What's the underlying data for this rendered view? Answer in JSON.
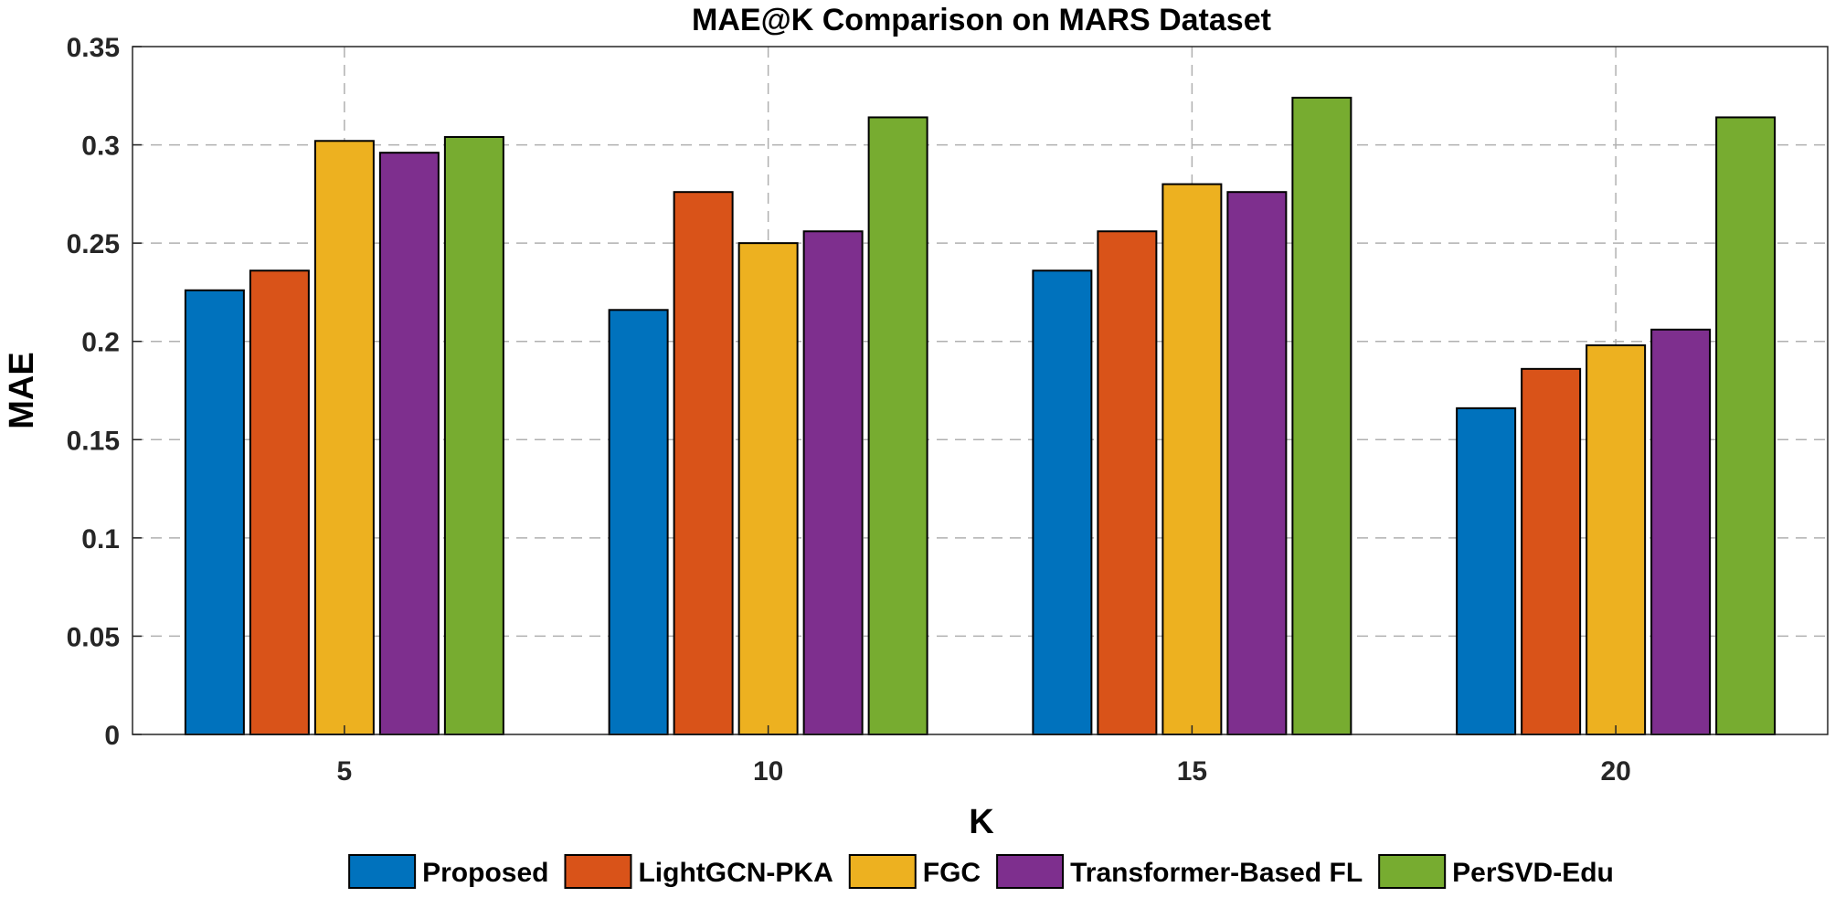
{
  "chart_data": {
    "type": "bar",
    "title": "MAE@K Comparison on MARS Dataset",
    "xlabel": "K",
    "ylabel": "MAE",
    "categories": [
      "5",
      "10",
      "15",
      "20"
    ],
    "ylim": [
      0,
      0.35
    ],
    "yticks": [
      0,
      0.05,
      0.1,
      0.15,
      0.2,
      0.25,
      0.3,
      0.35
    ],
    "ytick_labels": [
      "0",
      "0.05",
      "0.1",
      "0.15",
      "0.2",
      "0.25",
      "0.3",
      "0.35"
    ],
    "grid": true,
    "legend_position": "bottom",
    "series": [
      {
        "name": "Proposed",
        "color": "#0072BD",
        "values": [
          0.226,
          0.216,
          0.236,
          0.166
        ]
      },
      {
        "name": "LightGCN-PKA",
        "color": "#D95319",
        "values": [
          0.236,
          0.276,
          0.256,
          0.186
        ]
      },
      {
        "name": "FGC",
        "color": "#EDB120",
        "values": [
          0.302,
          0.25,
          0.28,
          0.198
        ]
      },
      {
        "name": "Transformer-Based FL",
        "color": "#7E2F8E",
        "values": [
          0.296,
          0.256,
          0.276,
          0.206
        ]
      },
      {
        "name": "PerSVD-Edu",
        "color": "#77AC30",
        "values": [
          0.304,
          0.314,
          0.324,
          0.314
        ]
      }
    ]
  }
}
